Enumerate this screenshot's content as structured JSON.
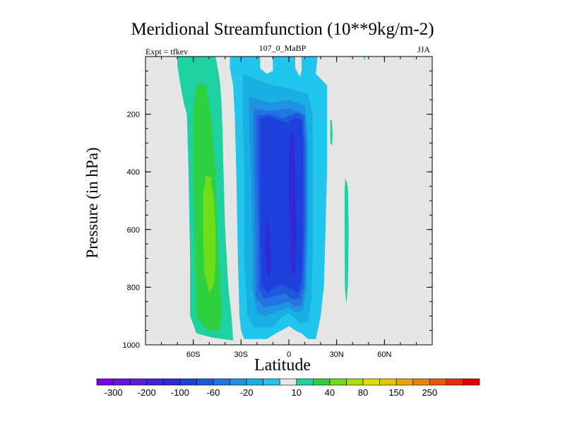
{
  "chart_data": {
    "type": "heatmap",
    "title": "Meridional Streamfunction (10**9kg/m-2)",
    "subtitle_left": "Expt = tfkev",
    "subtitle_center": "107_0_MaBP",
    "subtitle_right": "JJA",
    "xlabel": "Latitude",
    "ylabel": "Pressure (in hPa)",
    "xlim": [
      -90,
      90
    ],
    "ylim": [
      1000,
      0
    ],
    "x_ticks": [
      {
        "value": -60,
        "label": "60S"
      },
      {
        "value": -30,
        "label": "30S"
      },
      {
        "value": 0,
        "label": "0"
      },
      {
        "value": 30,
        "label": "30N"
      },
      {
        "value": 60,
        "label": "60N"
      }
    ],
    "y_ticks": [
      {
        "value": 200,
        "label": "200"
      },
      {
        "value": 400,
        "label": "400"
      },
      {
        "value": 600,
        "label": "600"
      },
      {
        "value": 800,
        "label": "800"
      },
      {
        "value": 1000,
        "label": "1000"
      }
    ],
    "colorbar": {
      "colors": [
        "#7a00e6",
        "#6a10e0",
        "#5a1ed8",
        "#4222d8",
        "#2e2ad6",
        "#1f3fdc",
        "#1d58de",
        "#2274e2",
        "#1f93e0",
        "#18b0e2",
        "#22c6ec",
        "#e6e6e6",
        "#1fd0a0",
        "#2fd040",
        "#6edc18",
        "#a8e00a",
        "#dede00",
        "#e6c400",
        "#eaa500",
        "#ea8200",
        "#e65a00",
        "#e43000",
        "#e00000"
      ],
      "labels": [
        "-300",
        "-200",
        "-100",
        "-60",
        "-20",
        "10",
        "40",
        "80",
        "150",
        "250"
      ],
      "label_boundaries": [
        1,
        3,
        5,
        7,
        9,
        12,
        14,
        16,
        18,
        20
      ]
    },
    "contour_regions": [
      {
        "level": 10,
        "color": "#1fd0a0",
        "points": [
          [
            -70,
            0
          ],
          [
            -46,
            0
          ],
          [
            -44,
            60
          ],
          [
            -43,
            100
          ],
          [
            -42,
            200
          ],
          [
            -41,
            400
          ],
          [
            -40,
            600
          ],
          [
            -38,
            800
          ],
          [
            -36,
            900
          ],
          [
            -35,
            985
          ],
          [
            -48,
            975
          ],
          [
            -58,
            960
          ],
          [
            -62,
            900
          ],
          [
            -62,
            700
          ],
          [
            -63,
            400
          ],
          [
            -64,
            200
          ],
          [
            -66,
            160
          ],
          [
            -68,
            100
          ],
          [
            -70,
            30
          ]
        ]
      },
      {
        "level": 40,
        "color": "#2fd040",
        "points": [
          [
            -57,
            90
          ],
          [
            -52,
            100
          ],
          [
            -49,
            200
          ],
          [
            -46,
            400
          ],
          [
            -45,
            600
          ],
          [
            -43,
            800
          ],
          [
            -42,
            900
          ],
          [
            -44,
            955
          ],
          [
            -52,
            945
          ],
          [
            -58,
            900
          ],
          [
            -59,
            700
          ],
          [
            -60,
            400
          ],
          [
            -60,
            200
          ],
          [
            -59,
            120
          ]
        ]
      },
      {
        "level": 80,
        "color": "#6edc18",
        "points": [
          [
            -52,
            410
          ],
          [
            -49,
            420
          ],
          [
            -47,
            500
          ],
          [
            -46,
            600
          ],
          [
            -46,
            700
          ],
          [
            -47,
            790
          ],
          [
            -50,
            820
          ],
          [
            -53,
            750
          ],
          [
            -54,
            600
          ],
          [
            -54,
            480
          ]
        ]
      },
      {
        "level": 10,
        "color": "#1fd0a0",
        "points": [
          [
            26,
            220
          ],
          [
            27,
            220
          ],
          [
            27.5,
            270
          ],
          [
            27,
            310
          ],
          [
            26,
            300
          ]
        ]
      },
      {
        "level": 10,
        "color": "#1fd0a0",
        "points": [
          [
            47,
            0
          ],
          [
            48,
            0
          ],
          [
            47.6,
            12
          ],
          [
            47.3,
            12
          ]
        ]
      },
      {
        "level": 10,
        "color": "#1fd0a0",
        "points": [
          [
            35.5,
            420
          ],
          [
            37,
            450
          ],
          [
            37.6,
            600
          ],
          [
            37,
            800
          ],
          [
            36,
            860
          ],
          [
            35.2,
            800
          ],
          [
            35,
            600
          ],
          [
            35,
            460
          ]
        ]
      },
      {
        "level": -20,
        "color": "#22c6ec",
        "points": [
          [
            -37,
            0
          ],
          [
            -18,
            0
          ],
          [
            -18,
            40
          ],
          [
            -14,
            60
          ],
          [
            -10,
            50
          ],
          [
            -10,
            0
          ],
          [
            4,
            0
          ],
          [
            4,
            40
          ],
          [
            7,
            70
          ],
          [
            8,
            50
          ],
          [
            8,
            0
          ],
          [
            18,
            0
          ],
          [
            17,
            60
          ],
          [
            24,
            100
          ],
          [
            24,
            200
          ],
          [
            24,
            400
          ],
          [
            23,
            600
          ],
          [
            22,
            800
          ],
          [
            20,
            900
          ],
          [
            17,
            980
          ],
          [
            12,
            980
          ],
          [
            8,
            960
          ],
          [
            4,
            950
          ],
          [
            0,
            935
          ],
          [
            -3,
            945
          ],
          [
            -8,
            960
          ],
          [
            -14,
            980
          ],
          [
            -28,
            980
          ],
          [
            -30,
            950
          ],
          [
            -31,
            900
          ],
          [
            -32,
            700
          ],
          [
            -33,
            400
          ],
          [
            -34,
            200
          ],
          [
            -35,
            100
          ],
          [
            -37,
            40
          ]
        ]
      },
      {
        "level": -60,
        "color": "#18b0e2",
        "points": [
          [
            -29,
            60
          ],
          [
            -20,
            80
          ],
          [
            -10,
            100
          ],
          [
            0,
            110
          ],
          [
            12,
            130
          ],
          [
            15,
            200
          ],
          [
            15,
            400
          ],
          [
            15,
            700
          ],
          [
            14,
            850
          ],
          [
            12,
            920
          ],
          [
            7,
            925
          ],
          [
            0,
            890
          ],
          [
            -4,
            900
          ],
          [
            -10,
            940
          ],
          [
            -22,
            940
          ],
          [
            -26,
            900
          ],
          [
            -28,
            700
          ],
          [
            -28,
            400
          ],
          [
            -29,
            200
          ]
        ]
      },
      {
        "level": -100,
        "color": "#1f93e0",
        "points": [
          [
            -25,
            140
          ],
          [
            -12,
            160
          ],
          [
            0,
            150
          ],
          [
            10,
            170
          ],
          [
            12,
            300
          ],
          [
            12,
            600
          ],
          [
            11,
            800
          ],
          [
            9,
            880
          ],
          [
            5,
            890
          ],
          [
            0,
            870
          ],
          [
            -5,
            880
          ],
          [
            -15,
            900
          ],
          [
            -20,
            890
          ],
          [
            -23,
            800
          ],
          [
            -23,
            600
          ],
          [
            -24,
            400
          ],
          [
            -25,
            200
          ]
        ]
      },
      {
        "level": -140,
        "color": "#2274e2",
        "points": [
          [
            -22,
            180
          ],
          [
            -12,
            190
          ],
          [
            0,
            180
          ],
          [
            10,
            200
          ],
          [
            11,
            300
          ],
          [
            11,
            600
          ],
          [
            10,
            800
          ],
          [
            8,
            860
          ],
          [
            3,
            870
          ],
          [
            0,
            850
          ],
          [
            -6,
            860
          ],
          [
            -16,
            870
          ],
          [
            -21,
            830
          ],
          [
            -21,
            600
          ],
          [
            -22,
            400
          ],
          [
            -22,
            250
          ]
        ]
      },
      {
        "level": -180,
        "color": "#1d58de",
        "points": [
          [
            -20,
            205
          ],
          [
            -12,
            200
          ],
          [
            -4,
            215
          ],
          [
            0,
            205
          ],
          [
            6,
            195
          ],
          [
            9,
            210
          ],
          [
            10,
            300
          ],
          [
            10,
            600
          ],
          [
            9,
            800
          ],
          [
            6,
            840
          ],
          [
            1,
            840
          ],
          [
            -2,
            820
          ],
          [
            -8,
            830
          ],
          [
            -16,
            840
          ],
          [
            -19,
            800
          ],
          [
            -19,
            600
          ],
          [
            -20,
            400
          ],
          [
            -20,
            260
          ]
        ]
      },
      {
        "level": -220,
        "color": "#1f3fdc",
        "points": [
          [
            -18,
            215
          ],
          [
            -12,
            208
          ],
          [
            -5,
            225
          ],
          [
            -1,
            230
          ],
          [
            4,
            212
          ],
          [
            8,
            218
          ],
          [
            9,
            300
          ],
          [
            9,
            600
          ],
          [
            8,
            780
          ],
          [
            6,
            820
          ],
          [
            0,
            800
          ],
          [
            -6,
            790
          ],
          [
            -14,
            820
          ],
          [
            -17,
            790
          ],
          [
            -18,
            600
          ],
          [
            -18,
            400
          ],
          [
            -18,
            280
          ]
        ]
      },
      {
        "level": -260,
        "color": "#2e2ad6",
        "points": [
          [
            -14,
            550
          ],
          [
            -12,
            600
          ],
          [
            -11,
            700
          ],
          [
            -12,
            770
          ],
          [
            -14,
            740
          ],
          [
            -15,
            650
          ]
        ]
      },
      {
        "level": -260,
        "color": "#2e2ad6",
        "points": [
          [
            1,
            260
          ],
          [
            3,
            280
          ],
          [
            4,
            400
          ],
          [
            5,
            600
          ],
          [
            4,
            740
          ],
          [
            2,
            760
          ],
          [
            1,
            700
          ],
          [
            0,
            500
          ],
          [
            0,
            340
          ]
        ]
      }
    ]
  }
}
